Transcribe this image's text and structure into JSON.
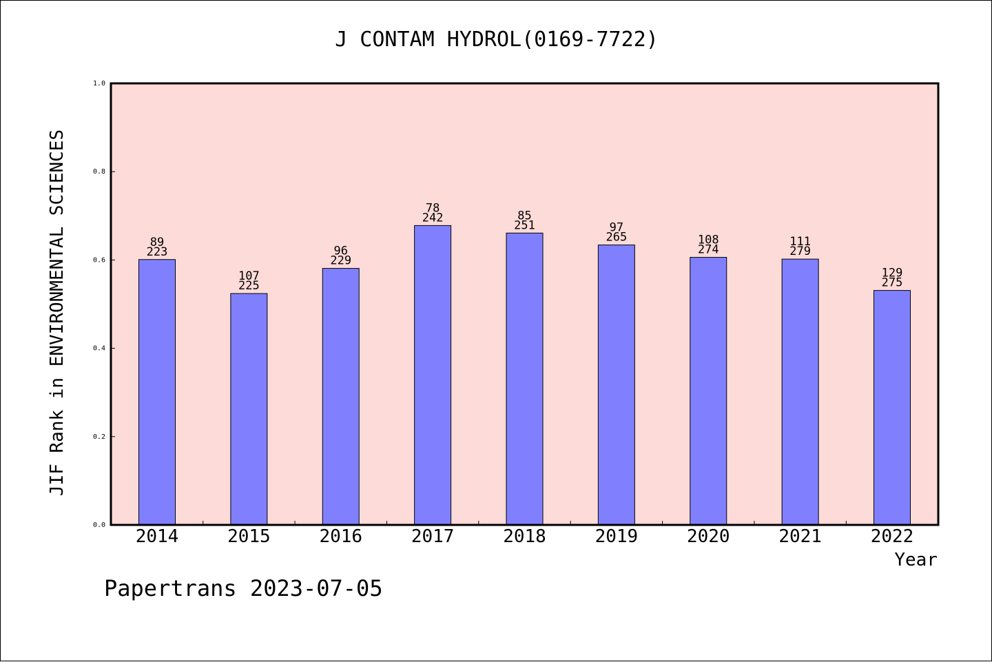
{
  "chart_data": {
    "type": "bar",
    "title": "J CONTAM HYDROL(0169-7722)",
    "xlabel": "Year",
    "ylabel": "JIF Rank in ENVIRONMENTAL SCIENCES",
    "ylim": [
      0.0,
      1.0
    ],
    "yticks": [
      "0.0",
      "0.2",
      "0.4",
      "0.6",
      "0.8",
      "1.0"
    ],
    "ytick_values": [
      0.0,
      0.2,
      0.4,
      0.6,
      0.8,
      1.0
    ],
    "categories": [
      "2014",
      "2015",
      "2016",
      "2017",
      "2018",
      "2019",
      "2020",
      "2021",
      "2022"
    ],
    "values": [
      0.601,
      0.524,
      0.581,
      0.678,
      0.661,
      0.634,
      0.606,
      0.602,
      0.531
    ],
    "rank_labels": [
      "89",
      "107",
      "96",
      "78",
      "85",
      "97",
      "108",
      "111",
      "129"
    ],
    "total_labels": [
      "223",
      "225",
      "229",
      "242",
      "251",
      "265",
      "274",
      "279",
      "275"
    ],
    "grid": false,
    "plot_background": "#fddbd8",
    "bar_color": "#8080ff",
    "bar_edge_color": "#000000"
  },
  "footer": {
    "text": "Papertrans 2023-07-05"
  }
}
